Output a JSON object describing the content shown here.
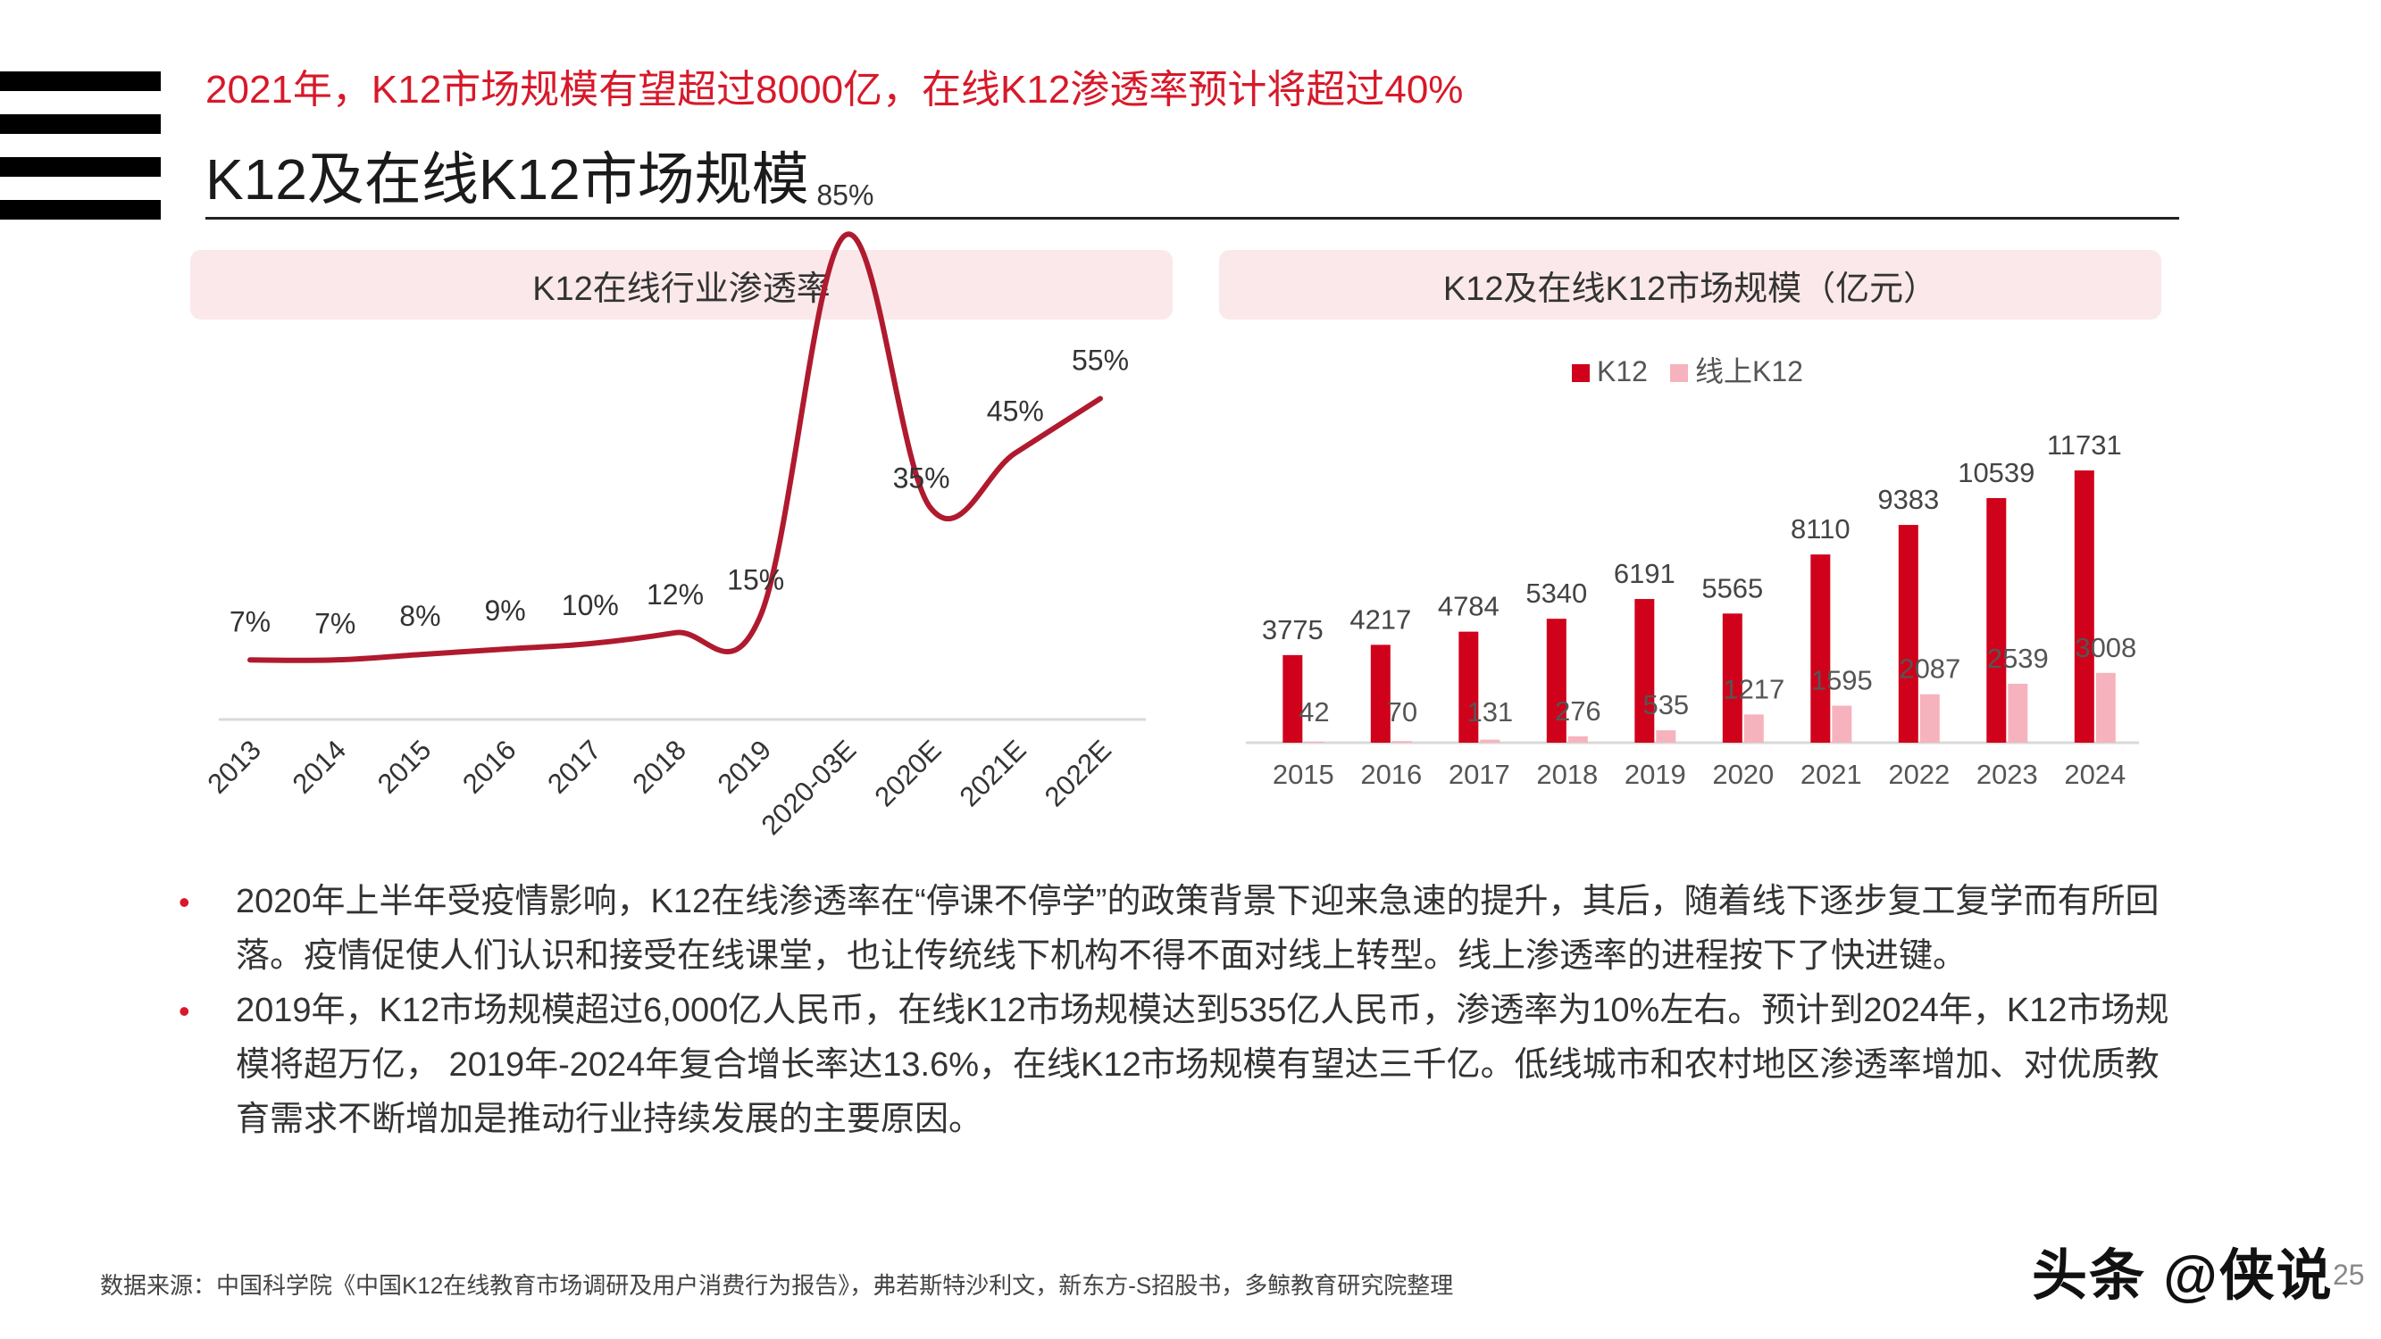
{
  "header": {
    "subtitle": "2021年，K12市场规模有望超过8000亿，在线K12渗透率预计将超过40%",
    "title": "K12及在线K12市场规模"
  },
  "panels": {
    "left_header": "K12在线行业渗透率",
    "right_header": "K12及在线K12市场规模（亿元）"
  },
  "chart_data": [
    {
      "type": "line",
      "title": "K12在线行业渗透率",
      "categories": [
        "2013",
        "2014",
        "2015",
        "2016",
        "2017",
        "2018",
        "2019",
        "2020-03E",
        "2020E",
        "2021E",
        "2022E"
      ],
      "series": [
        {
          "values": [
            7,
            7,
            8,
            9,
            10,
            12,
            15,
            85,
            35,
            45,
            55
          ]
        }
      ],
      "value_labels": [
        "7%",
        "7%",
        "8%",
        "9%",
        "10%",
        "12%",
        "15%",
        "85%",
        "35%",
        "45%",
        "55%"
      ],
      "ylim": [
        0,
        100
      ],
      "grid": false,
      "colors": {
        "line": "#b01a2e"
      }
    },
    {
      "type": "bar",
      "title": "K12及在线K12市场规模（亿元）",
      "categories": [
        "2015",
        "2016",
        "2017",
        "2018",
        "2019",
        "2020",
        "2021",
        "2022",
        "2023",
        "2024"
      ],
      "series": [
        {
          "name": "K12",
          "values": [
            3775,
            4217,
            4784,
            5340,
            6191,
            5565,
            8110,
            9383,
            10539,
            11731
          ],
          "color": "#d0021b"
        },
        {
          "name": "线上K12",
          "values": [
            42,
            70,
            131,
            276,
            535,
            1217,
            1595,
            2087,
            2539,
            3008
          ],
          "color": "#f6b3bd"
        }
      ],
      "ylim": [
        0,
        12500
      ],
      "legend": "top-center",
      "grid": false
    }
  ],
  "bullets": [
    "2020年上半年受疫情影响，K12在线渗透率在“停课不停学”的政策背景下迎来急速的提升，其后，随着线下逐步复工复学而有所回落。疫情促使人们认识和接受在线课堂，也让传统线下机构不得不面对线上转型。线上渗透率的进程按下了快进键。",
    "2019年，K12市场规模超过6,000亿人民币，在线K12市场规模达到535亿人民币，渗透率为10%左右。预计到2024年，K12市场规模将超万亿， 2019年-2024年复合增长率达13.6%，在线K12市场规模有望达三千亿。低线城市和农村地区渗透率增加、对优质教育需求不断增加是推动行业持续发展的主要原因。"
  ],
  "bullet_marker": "•",
  "footer": {
    "source": "数据来源：中国科学院《中国K12在线教育市场调研及用户消费行为报告》，弗若斯特沙利文，新东方-S招股书，多鲸教育研究院整理",
    "watermark": "头条 @侠说",
    "page_number": "25"
  }
}
